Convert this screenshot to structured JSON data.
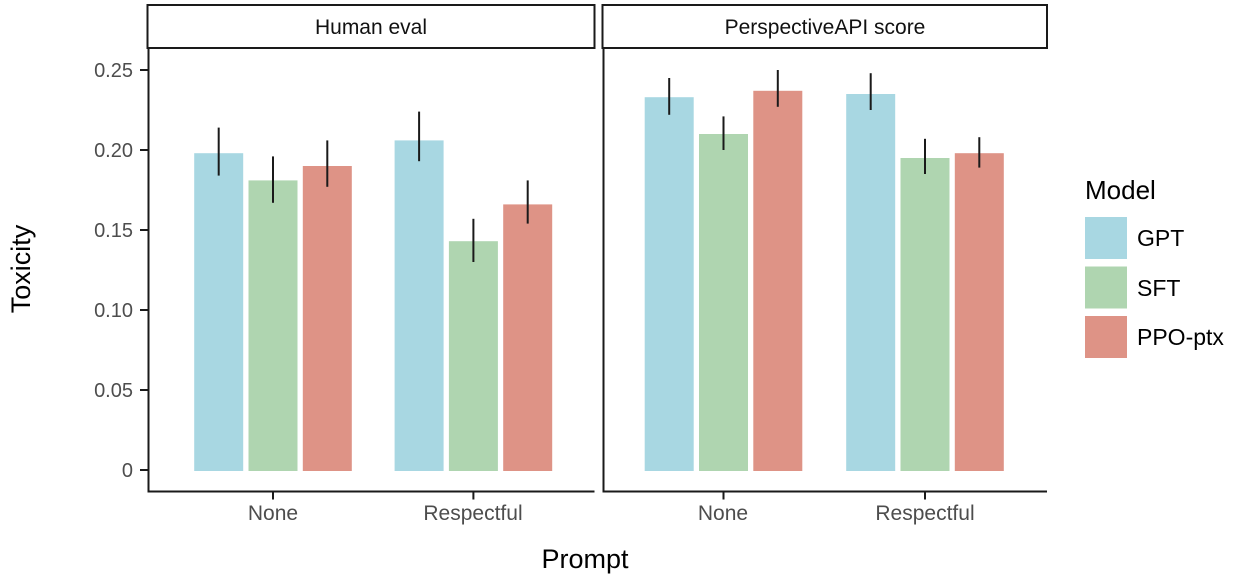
{
  "chart_data": {
    "type": "bar",
    "title": "",
    "xlabel": "Prompt",
    "ylabel": "Toxicity",
    "ylim": [
      0,
      0.27
    ],
    "yticks": [
      0,
      0.05,
      0.1,
      0.15,
      0.2,
      0.25
    ],
    "ytick_labels": [
      "0",
      "0.05",
      "0.10",
      "0.15",
      "0.20",
      "0.25"
    ],
    "grid": false,
    "legend_position": "right",
    "facets": [
      {
        "label": "Human eval",
        "categories": [
          "None",
          "Respectful"
        ],
        "series": [
          {
            "name": "GPT",
            "values": [
              0.198,
              0.206
            ],
            "err_low": [
              0.184,
              0.193
            ],
            "err_high": [
              0.214,
              0.224
            ]
          },
          {
            "name": "SFT",
            "values": [
              0.181,
              0.143
            ],
            "err_low": [
              0.167,
              0.13
            ],
            "err_high": [
              0.196,
              0.157
            ]
          },
          {
            "name": "PPO-ptx",
            "values": [
              0.19,
              0.166
            ],
            "err_low": [
              0.177,
              0.154
            ],
            "err_high": [
              0.206,
              0.181
            ]
          }
        ]
      },
      {
        "label": "PerspectiveAPI score",
        "categories": [
          "None",
          "Respectful"
        ],
        "series": [
          {
            "name": "GPT",
            "values": [
              0.233,
              0.235
            ],
            "err_low": [
              0.222,
              0.225
            ],
            "err_high": [
              0.245,
              0.248
            ]
          },
          {
            "name": "SFT",
            "values": [
              0.21,
              0.195
            ],
            "err_low": [
              0.2,
              0.185
            ],
            "err_high": [
              0.221,
              0.207
            ]
          },
          {
            "name": "PPO-ptx",
            "values": [
              0.237,
              0.198
            ],
            "err_low": [
              0.227,
              0.189
            ],
            "err_high": [
              0.25,
              0.208
            ]
          }
        ]
      }
    ],
    "legend": {
      "title": "Model",
      "entries": [
        "GPT",
        "SFT",
        "PPO-ptx"
      ]
    },
    "colors": {
      "GPT": "#A8D7E2",
      "SFT": "#AFD5B0",
      "PPO-ptx": "#DE9386",
      "error_bar": "#1a1a1a",
      "axis_line": "#1a1a1a",
      "strip_border": "#1a1a1a",
      "tick_label": "#4d4d4d",
      "background": "#ffffff"
    }
  }
}
